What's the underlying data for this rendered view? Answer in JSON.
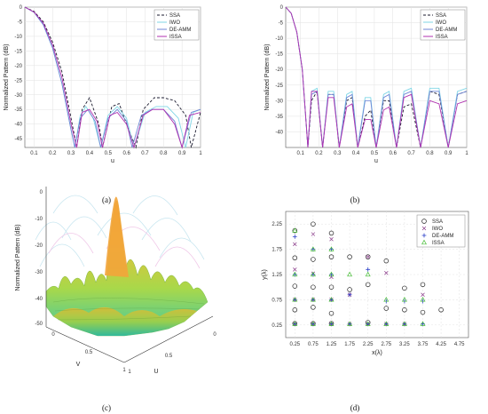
{
  "captions": {
    "a": "(a)",
    "b": "(b)",
    "c": "(c)",
    "d": "(d)"
  },
  "colors": {
    "SSA": "#1a1a2e",
    "IWO": "#7fd6e6",
    "DE-AMM": "#6f86d6",
    "ISSA": "#b030b0",
    "grid": "#e2e2e2"
  },
  "chart_data": [
    {
      "id": "a",
      "type": "line",
      "xlabel": "u",
      "ylabel": "Normalized Pattern (dB)",
      "xlim": [
        0.05,
        1.0
      ],
      "ylim": [
        -48,
        0
      ],
      "xticks": [
        "0.1",
        "0.2",
        "0.3",
        "0.4",
        "0.5",
        "0.6",
        "0.7",
        "0.8",
        "0.9",
        "1"
      ],
      "xtick_values": [
        0.1,
        0.2,
        0.3,
        0.4,
        0.5,
        0.6,
        0.7,
        0.8,
        0.9,
        1.0
      ],
      "yticks": [
        "0",
        "-5",
        "-10",
        "-15",
        "-20",
        "-25",
        "-30",
        "-35",
        "-40",
        "-45"
      ],
      "ytick_values": [
        0,
        -5,
        -10,
        -15,
        -20,
        -25,
        -30,
        -35,
        -40,
        -45
      ],
      "grid": true,
      "legend_position": "top-right",
      "series": [
        {
          "name": "SSA",
          "style": "dashed",
          "x": [
            0.05,
            0.1,
            0.15,
            0.2,
            0.25,
            0.3,
            0.33,
            0.36,
            0.4,
            0.45,
            0.47,
            0.52,
            0.56,
            0.6,
            0.65,
            0.69,
            0.75,
            0.8,
            0.86,
            0.92,
            0.95,
            1.0
          ],
          "y": [
            0,
            -1.5,
            -5,
            -12,
            -22,
            -38,
            -48,
            -35,
            -31,
            -40,
            -48,
            -34,
            -33,
            -40,
            -48,
            -35,
            -31,
            -31,
            -32,
            -37,
            -48,
            -36
          ]
        },
        {
          "name": "IWO",
          "style": "solid",
          "x": [
            0.05,
            0.1,
            0.15,
            0.2,
            0.25,
            0.3,
            0.32,
            0.35,
            0.38,
            0.42,
            0.46,
            0.5,
            0.55,
            0.6,
            0.64,
            0.7,
            0.76,
            0.82,
            0.88,
            0.92,
            0.96,
            1.0
          ],
          "y": [
            0,
            -1.8,
            -6,
            -14,
            -26,
            -42,
            -48,
            -37,
            -34,
            -38,
            -48,
            -37,
            -34,
            -38,
            -48,
            -36,
            -34,
            -34,
            -38,
            -48,
            -36,
            -35
          ]
        },
        {
          "name": "DE-AMM",
          "style": "solid",
          "x": [
            0.05,
            0.1,
            0.15,
            0.2,
            0.25,
            0.3,
            0.32,
            0.35,
            0.39,
            0.43,
            0.46,
            0.5,
            0.55,
            0.6,
            0.63,
            0.68,
            0.74,
            0.8,
            0.86,
            0.9,
            0.95,
            1.0
          ],
          "y": [
            0,
            -1.8,
            -6,
            -14,
            -26,
            -42,
            -48,
            -38,
            -35,
            -39,
            -48,
            -38,
            -35,
            -39,
            -48,
            -37,
            -35,
            -35,
            -39,
            -48,
            -36,
            -35
          ]
        },
        {
          "name": "ISSA",
          "style": "solid",
          "x": [
            0.05,
            0.1,
            0.15,
            0.2,
            0.25,
            0.3,
            0.33,
            0.36,
            0.4,
            0.44,
            0.47,
            0.51,
            0.55,
            0.6,
            0.64,
            0.69,
            0.74,
            0.8,
            0.86,
            0.9,
            0.94,
            1.0
          ],
          "y": [
            0,
            -1.7,
            -5.5,
            -13,
            -24,
            -40,
            -48,
            -36,
            -35,
            -39,
            -48,
            -37,
            -36,
            -40,
            -48,
            -37,
            -35,
            -35,
            -40,
            -48,
            -37,
            -36
          ]
        }
      ]
    },
    {
      "id": "b",
      "type": "line",
      "xlabel": "u",
      "ylabel": "Normalized Pattern (dB)",
      "xlim": [
        0.02,
        1.0
      ],
      "ylim": [
        -45,
        0
      ],
      "xticks": [
        "0.1",
        "0.2",
        "0.3",
        "0.4",
        "0.5",
        "0.6",
        "0.7",
        "0.8",
        "0.9",
        "1"
      ],
      "xtick_values": [
        0.1,
        0.2,
        0.3,
        0.4,
        0.5,
        0.6,
        0.7,
        0.8,
        0.9,
        1.0
      ],
      "yticks": [
        "0",
        "-5",
        "-10",
        "-15",
        "-20",
        "-25",
        "-30",
        "-35",
        "-40"
      ],
      "ytick_values": [
        0,
        -5,
        -10,
        -15,
        -20,
        -25,
        -30,
        -35,
        -40
      ],
      "grid": true,
      "legend_position": "top-right",
      "series": [
        {
          "name": "SSA",
          "style": "dashed",
          "x": [
            0.02,
            0.05,
            0.08,
            0.11,
            0.14,
            0.16,
            0.19,
            0.22,
            0.25,
            0.28,
            0.31,
            0.35,
            0.38,
            0.41,
            0.45,
            0.48,
            0.51,
            0.55,
            0.58,
            0.62,
            0.66,
            0.7,
            0.75,
            0.8,
            0.85,
            0.9,
            0.95,
            1.0
          ],
          "y": [
            0,
            -2,
            -8,
            -20,
            -45,
            -30,
            -27,
            -45,
            -28,
            -28,
            -45,
            -30,
            -29,
            -45,
            -35,
            -33,
            -45,
            -30,
            -30,
            -45,
            -32,
            -31,
            -45,
            -27,
            -28,
            -45,
            -28,
            -27
          ]
        },
        {
          "name": "IWO",
          "style": "solid",
          "x": [
            0.02,
            0.05,
            0.08,
            0.11,
            0.14,
            0.16,
            0.19,
            0.22,
            0.25,
            0.28,
            0.31,
            0.35,
            0.38,
            0.41,
            0.45,
            0.48,
            0.51,
            0.55,
            0.58,
            0.62,
            0.66,
            0.7,
            0.75,
            0.8,
            0.85,
            0.9,
            0.95,
            1.0
          ],
          "y": [
            0,
            -2,
            -8,
            -20,
            -45,
            -27,
            -26,
            -45,
            -27,
            -27,
            -45,
            -28,
            -27,
            -45,
            -29,
            -29,
            -45,
            -28,
            -27,
            -45,
            -27,
            -26,
            -45,
            -26,
            -26,
            -45,
            -27,
            -26
          ]
        },
        {
          "name": "DE-AMM",
          "style": "solid",
          "x": [
            0.02,
            0.05,
            0.08,
            0.11,
            0.14,
            0.16,
            0.19,
            0.22,
            0.25,
            0.28,
            0.31,
            0.35,
            0.38,
            0.41,
            0.45,
            0.48,
            0.51,
            0.55,
            0.58,
            0.62,
            0.66,
            0.7,
            0.75,
            0.8,
            0.85,
            0.9,
            0.95,
            1.0
          ],
          "y": [
            0,
            -2,
            -8,
            -20,
            -45,
            -28,
            -27,
            -45,
            -28,
            -28,
            -45,
            -29,
            -28,
            -45,
            -30,
            -30,
            -45,
            -29,
            -28,
            -45,
            -28,
            -27,
            -45,
            -27,
            -27,
            -45,
            -28,
            -27
          ]
        },
        {
          "name": "ISSA",
          "style": "solid",
          "x": [
            0.02,
            0.05,
            0.08,
            0.11,
            0.14,
            0.16,
            0.19,
            0.22,
            0.25,
            0.28,
            0.31,
            0.35,
            0.38,
            0.41,
            0.45,
            0.48,
            0.51,
            0.55,
            0.58,
            0.62,
            0.66,
            0.7,
            0.75,
            0.8,
            0.85,
            0.9,
            0.95,
            1.0
          ],
          "y": [
            0,
            -2,
            -8,
            -20,
            -45,
            -27,
            -27,
            -45,
            -29,
            -29,
            -45,
            -32,
            -31,
            -45,
            -36,
            -36,
            -45,
            -33,
            -32,
            -45,
            -29,
            -28,
            -45,
            -30,
            -31,
            -45,
            -31,
            -30
          ]
        }
      ]
    },
    {
      "id": "c",
      "type": "surface",
      "zlabel": "Normalized Pattern (dB)",
      "ulabel": "U",
      "vlabel": "V",
      "zticks": [
        "0",
        "-10",
        "-20",
        "-30",
        "-40",
        "-50"
      ],
      "uticks": [
        "0",
        "0.5",
        "1"
      ],
      "vticks": [
        "0",
        "0.5",
        "1"
      ]
    },
    {
      "id": "d",
      "type": "scatter",
      "xlabel": "x(λ)",
      "ylabel": "y(λ)",
      "xlim": [
        0,
        5
      ],
      "ylim": [
        0,
        2.5
      ],
      "xticks": [
        "0.25",
        "0.75",
        "1.25",
        "1.75",
        "2.25",
        "2.75",
        "3.25",
        "3.75",
        "4.25",
        "4.75"
      ],
      "xtick_values": [
        0.25,
        0.75,
        1.25,
        1.75,
        2.25,
        2.75,
        3.25,
        3.75,
        4.25,
        4.75
      ],
      "yticks": [
        "0.25",
        "0.75",
        "1.25",
        "1.75",
        "2.25"
      ],
      "ytick_values": [
        0.25,
        0.75,
        1.25,
        1.75,
        2.25
      ],
      "grid": true,
      "legend_position": "top-right",
      "series": [
        {
          "name": "SSA",
          "marker": "circle",
          "x": [
            0.25,
            0.25,
            0.25,
            0.25,
            0.25,
            0.75,
            0.75,
            0.75,
            0.75,
            0.75,
            1.25,
            1.25,
            1.25,
            1.25,
            1.25,
            1.75,
            1.75,
            2.25,
            2.25,
            2.25,
            2.75,
            2.75,
            3.25,
            3.25,
            3.75,
            3.75,
            4.25,
            4.75
          ],
          "y": [
            0.55,
            1.02,
            1.58,
            2.12,
            0.28,
            0.6,
            1.0,
            1.55,
            2.25,
            0.28,
            0.48,
            1.0,
            1.6,
            2.07,
            0.28,
            1.6,
            0.95,
            1.6,
            1.05,
            0.3,
            1.52,
            0.58,
            0.98,
            0.55,
            1.05,
            0.5,
            0.55,
            2.25
          ]
        },
        {
          "name": "IWO",
          "marker": "x",
          "x": [
            0.25,
            0.25,
            0.25,
            0.25,
            0.75,
            0.75,
            0.75,
            0.75,
            1.25,
            1.25,
            1.25,
            1.25,
            1.75,
            1.75,
            2.25,
            2.25,
            2.75,
            2.75,
            3.25,
            3.75,
            4.75
          ],
          "y": [
            0.27,
            0.75,
            1.35,
            1.85,
            0.27,
            0.75,
            1.27,
            2.05,
            0.27,
            0.75,
            1.2,
            1.95,
            0.27,
            0.85,
            0.27,
            1.6,
            0.27,
            1.28,
            0.27,
            0.85,
            2.25
          ]
        },
        {
          "name": "DE-AMM",
          "marker": "plus",
          "x": [
            0.25,
            0.25,
            0.25,
            0.25,
            0.75,
            0.75,
            0.75,
            0.75,
            1.25,
            1.25,
            1.25,
            1.25,
            1.75,
            1.75,
            2.25,
            2.25,
            2.75,
            2.75,
            3.25,
            3.25,
            3.75,
            3.75,
            4.75
          ],
          "y": [
            0.27,
            0.75,
            1.25,
            2.0,
            0.27,
            0.75,
            1.25,
            1.75,
            0.27,
            0.75,
            1.25,
            1.75,
            0.27,
            0.85,
            0.27,
            1.35,
            0.27,
            0.72,
            0.27,
            0.72,
            0.27,
            0.72,
            2.25
          ]
        },
        {
          "name": "ISSA",
          "marker": "triangle",
          "x": [
            0.25,
            0.25,
            0.25,
            0.25,
            0.75,
            0.75,
            0.75,
            0.75,
            1.25,
            1.25,
            1.25,
            1.25,
            1.75,
            1.75,
            2.25,
            2.25,
            2.75,
            2.75,
            3.25,
            3.25,
            3.75,
            3.75,
            4.75
          ],
          "y": [
            0.27,
            0.75,
            1.25,
            2.12,
            0.27,
            0.75,
            1.25,
            1.75,
            0.27,
            0.75,
            1.25,
            1.75,
            0.27,
            1.25,
            0.27,
            1.25,
            0.27,
            0.75,
            0.27,
            0.75,
            0.27,
            0.75,
            2.25
          ]
        }
      ]
    }
  ]
}
